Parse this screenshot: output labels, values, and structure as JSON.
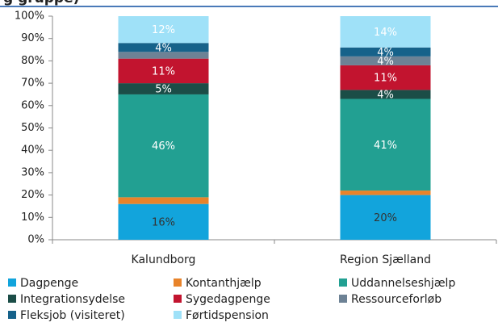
{
  "chart_data": {
    "type": "stacked_bar",
    "title": "g gruppe)",
    "categories": [
      "Kalundborg",
      "Region Sjælland"
    ],
    "series": [
      {
        "name": "Dagpenge",
        "color": "#12a4dc",
        "values": [
          16,
          20
        ],
        "value_labels": [
          "16%",
          "20%"
        ]
      },
      {
        "name": "Kontanthjælp",
        "color": "#e8832a",
        "values": [
          3,
          2
        ],
        "value_labels": [
          null,
          null
        ]
      },
      {
        "name": "Uddannelseshjælp",
        "color": "#22a092",
        "values": [
          46,
          41
        ],
        "value_labels": [
          "46%",
          "41%"
        ]
      },
      {
        "name": "Integrationsydelse",
        "color": "#1b4d47",
        "values": [
          5,
          4
        ],
        "value_labels": [
          "5%",
          "4%"
        ]
      },
      {
        "name": "Sygedagpenge",
        "color": "#c2142f",
        "values": [
          11,
          11
        ],
        "value_labels": [
          "11%",
          "11%"
        ]
      },
      {
        "name": "Ressourceforløb",
        "color": "#6d8295",
        "values": [
          3,
          4
        ],
        "value_labels": [
          null,
          "4%"
        ]
      },
      {
        "name": "Fleksjob (visiteret)",
        "color": "#16628a",
        "values": [
          4,
          4
        ],
        "value_labels": [
          "4%",
          "4%"
        ]
      },
      {
        "name": "Førtidspension",
        "color": "#9fe1f8",
        "values": [
          12,
          14
        ],
        "value_labels": [
          "12%",
          "14%"
        ]
      }
    ],
    "ylim": [
      0,
      100
    ],
    "yticks": [
      {
        "value": 0,
        "label": "0%"
      },
      {
        "value": 10,
        "label": "10%"
      },
      {
        "value": 20,
        "label": "20%"
      },
      {
        "value": 30,
        "label": "30%"
      },
      {
        "value": 40,
        "label": "40%"
      },
      {
        "value": 50,
        "label": "50%"
      },
      {
        "value": 60,
        "label": "60%"
      },
      {
        "value": 70,
        "label": "70%"
      },
      {
        "value": 80,
        "label": "80%"
      },
      {
        "value": 90,
        "label": "90%"
      },
      {
        "value": 100,
        "label": "100%"
      }
    ],
    "legend": "bottom"
  }
}
